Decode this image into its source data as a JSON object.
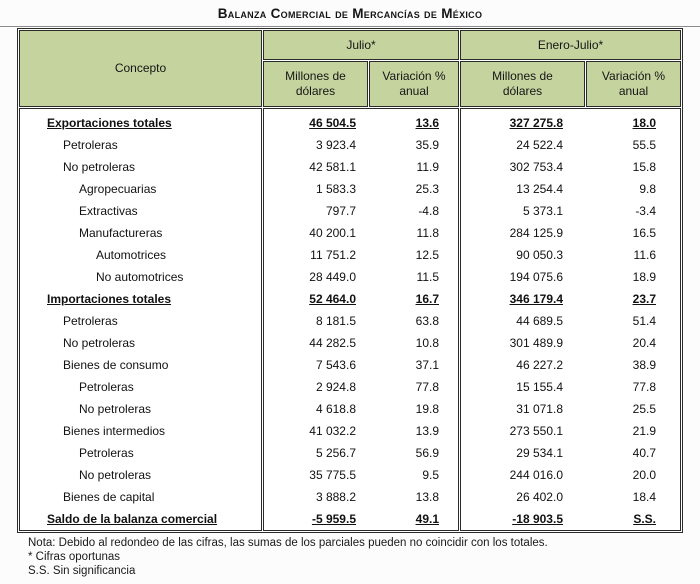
{
  "page": {
    "title": "Balanza Comercial de Mercancías de México"
  },
  "colors": {
    "header_green": "#c5d49e",
    "border_dark": "#2b2b2b",
    "page_bg": "#fcfcfc"
  },
  "table": {
    "concepto_header": "Concepto",
    "groups": [
      {
        "label": "Julio*"
      },
      {
        "label": "Enero-Julio*"
      }
    ],
    "subheaders": [
      "Millones de dólares",
      "Variación % anual",
      "Millones de dólares",
      "Variación % anual"
    ],
    "rows": [
      {
        "label": "Exportaciones totales",
        "indent": 0,
        "emphasis": true,
        "values": [
          "46 504.5",
          "13.6",
          "327 275.8",
          "18.0"
        ]
      },
      {
        "label": "Petroleras",
        "indent": 1,
        "emphasis": false,
        "values": [
          "3 923.4",
          "35.9",
          "24 522.4",
          "55.5"
        ]
      },
      {
        "label": "No petroleras",
        "indent": 1,
        "emphasis": false,
        "values": [
          "42 581.1",
          "11.9",
          "302 753.4",
          "15.8"
        ]
      },
      {
        "label": "Agropecuarias",
        "indent": 2,
        "emphasis": false,
        "values": [
          "1 583.3",
          "25.3",
          "13 254.4",
          "9.8"
        ]
      },
      {
        "label": "Extractivas",
        "indent": 2,
        "emphasis": false,
        "values": [
          "797.7",
          "-4.8",
          "5 373.1",
          "-3.4"
        ]
      },
      {
        "label": "Manufactureras",
        "indent": 2,
        "emphasis": false,
        "values": [
          "40 200.1",
          "11.8",
          "284 125.9",
          "16.5"
        ]
      },
      {
        "label": "Automotrices",
        "indent": 3,
        "emphasis": false,
        "values": [
          "11 751.2",
          "12.5",
          "90 050.3",
          "11.6"
        ]
      },
      {
        "label": "No automotrices",
        "indent": 3,
        "emphasis": false,
        "values": [
          "28 449.0",
          "11.5",
          "194 075.6",
          "18.9"
        ]
      },
      {
        "label": "Importaciones totales",
        "indent": 0,
        "emphasis": true,
        "values": [
          "52 464.0",
          "16.7",
          "346 179.4",
          "23.7"
        ]
      },
      {
        "label": "Petroleras",
        "indent": 1,
        "emphasis": false,
        "values": [
          "8 181.5",
          "63.8",
          "44 689.5",
          "51.4"
        ]
      },
      {
        "label": "No petroleras",
        "indent": 1,
        "emphasis": false,
        "values": [
          "44 282.5",
          "10.8",
          "301 489.9",
          "20.4"
        ]
      },
      {
        "label": "Bienes de consumo",
        "indent": 1,
        "emphasis": false,
        "values": [
          "7 543.6",
          "37.1",
          "46 227.2",
          "38.9"
        ]
      },
      {
        "label": "Petroleras",
        "indent": 2,
        "emphasis": false,
        "values": [
          "2 924.8",
          "77.8",
          "15 155.4",
          "77.8"
        ]
      },
      {
        "label": "No petroleras",
        "indent": 2,
        "emphasis": false,
        "values": [
          "4 618.8",
          "19.8",
          "31 071.8",
          "25.5"
        ]
      },
      {
        "label": "Bienes intermedios",
        "indent": 1,
        "emphasis": false,
        "values": [
          "41 032.2",
          "13.9",
          "273 550.1",
          "21.9"
        ]
      },
      {
        "label": "Petroleras",
        "indent": 2,
        "emphasis": false,
        "values": [
          "5 256.7",
          "56.9",
          "29 534.1",
          "40.7"
        ]
      },
      {
        "label": "No petroleras",
        "indent": 2,
        "emphasis": false,
        "values": [
          "35 775.5",
          "9.5",
          "244 016.0",
          "20.0"
        ]
      },
      {
        "label": "Bienes de capital",
        "indent": 1,
        "emphasis": false,
        "values": [
          "3 888.2",
          "13.8",
          "26 402.0",
          "18.4"
        ]
      },
      {
        "label": "Saldo de la balanza comercial",
        "indent": 0,
        "emphasis": true,
        "values": [
          "-5 959.5",
          "49.1",
          "-18 903.5",
          "S.S."
        ]
      }
    ]
  },
  "notes": [
    "Nota: Debido al redondeo de las cifras, las sumas de los parciales pueden no coincidir con los totales.",
    "* Cifras oportunas",
    "S.S. Sin significancia"
  ]
}
